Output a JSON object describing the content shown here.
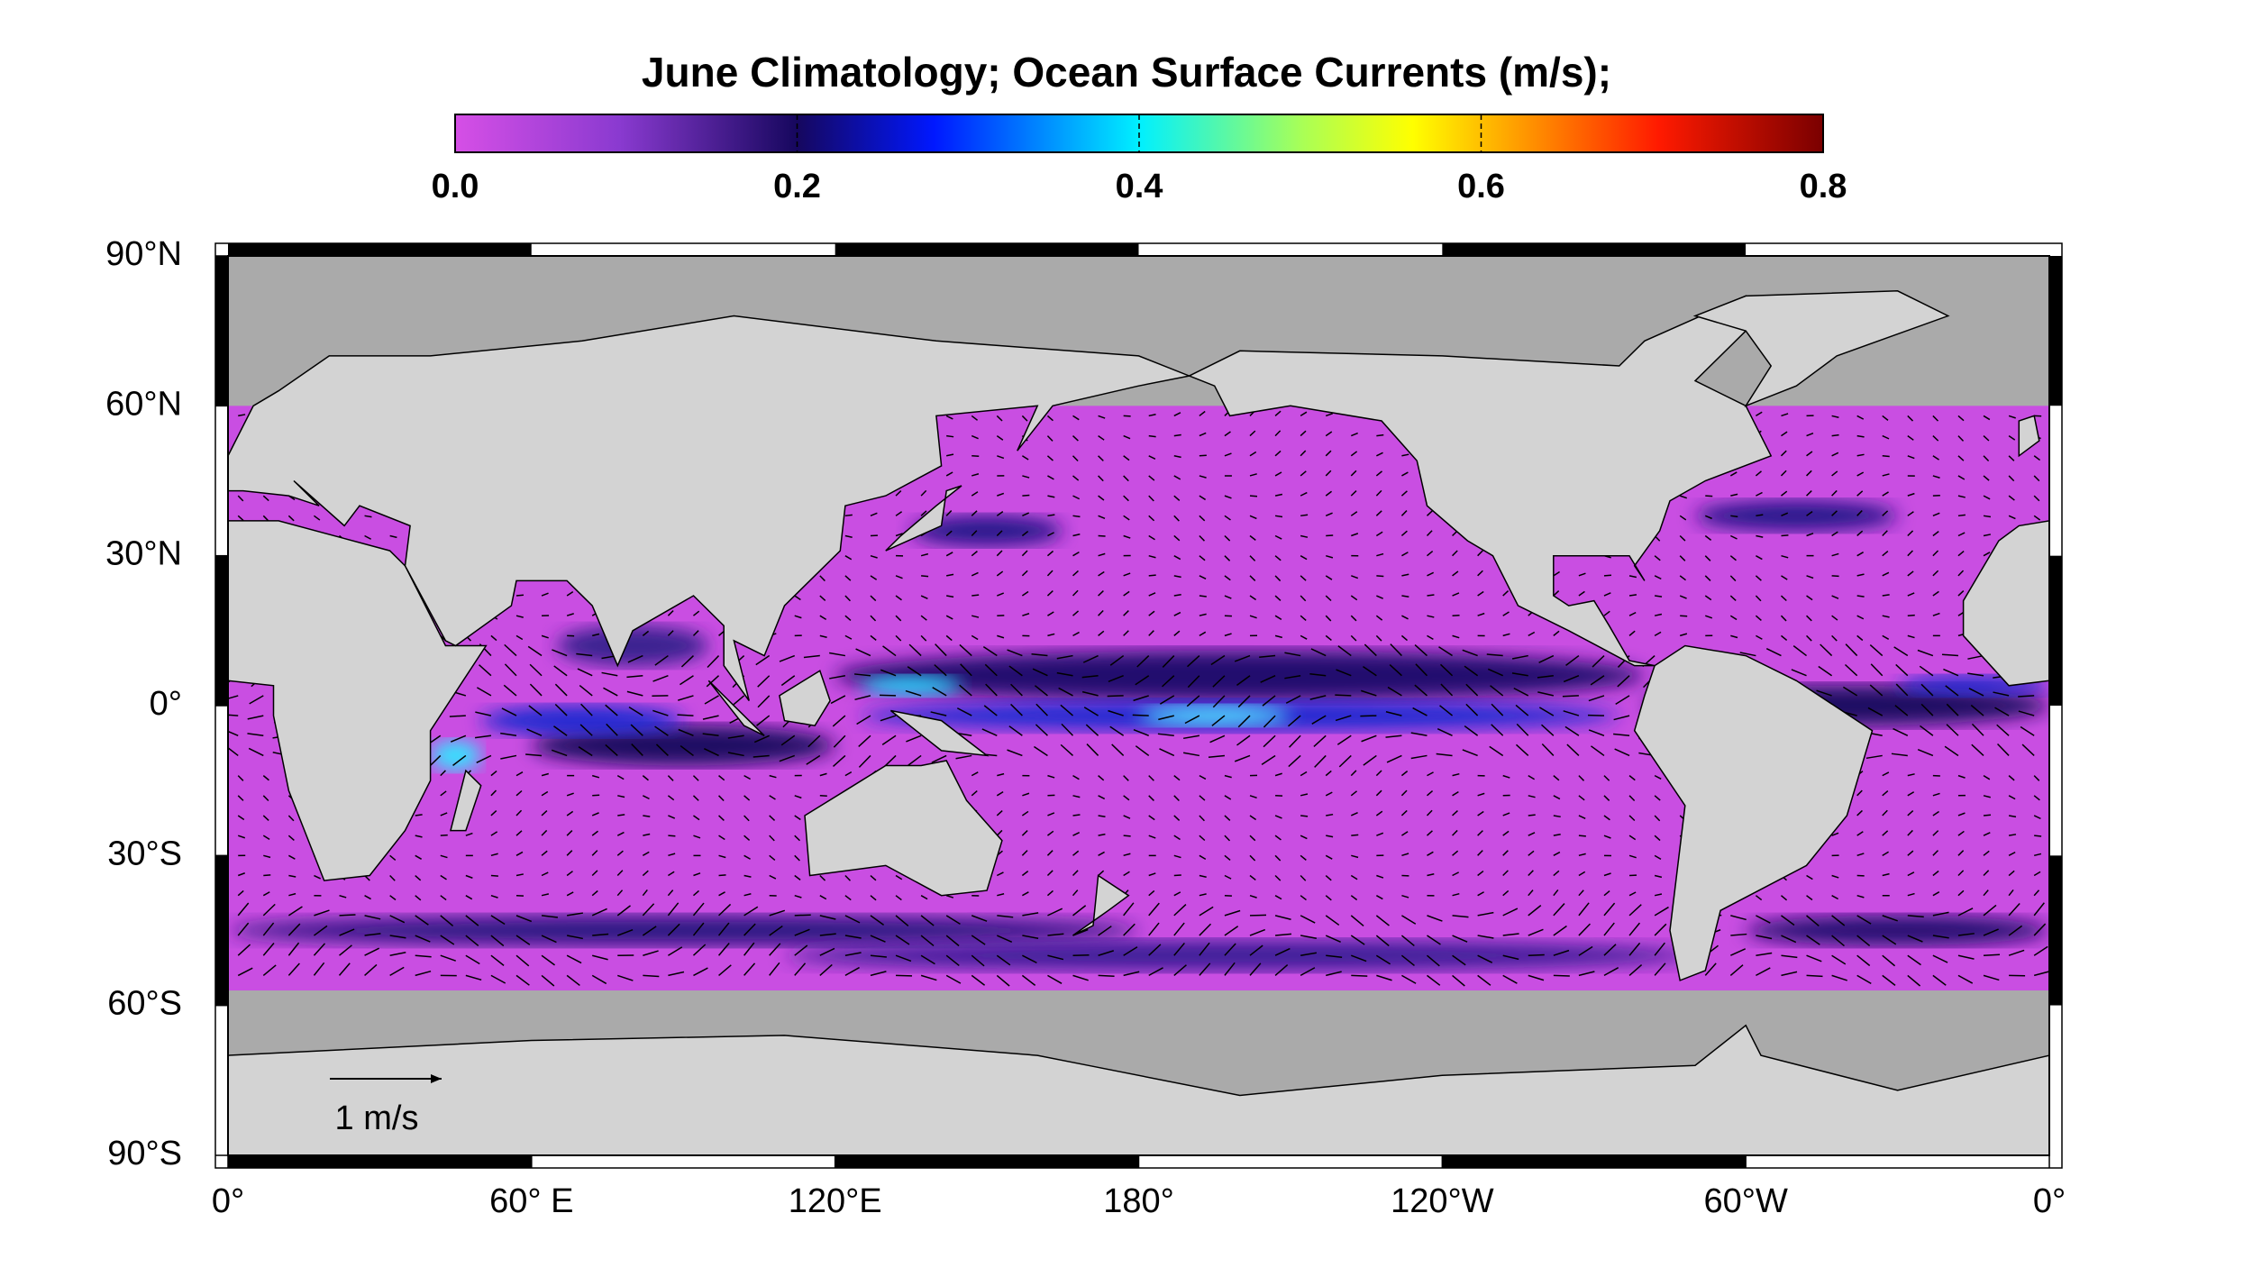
{
  "title": "June Climatology; Ocean Surface Currents (m/s);",
  "colorbar": {
    "lim": [
      0,
      0.8
    ],
    "ticks": [
      {
        "value": 0,
        "label": "0.0"
      },
      {
        "value": 0.2,
        "label": "0.2"
      },
      {
        "value": 0.4,
        "label": "0.4"
      },
      {
        "value": 0.6,
        "label": "0.6"
      },
      {
        "value": 0.8,
        "label": "0.8"
      }
    ]
  },
  "map": {
    "lon_lim": [
      0,
      360
    ],
    "lat_lim": [
      -90,
      90
    ],
    "lat_ticks": [
      {
        "value": 90,
        "label": "90°N"
      },
      {
        "value": 60,
        "label": "60°N"
      },
      {
        "value": 30,
        "label": "30°N"
      },
      {
        "value": 0,
        "label": "0°"
      },
      {
        "value": -30,
        "label": "30°S"
      },
      {
        "value": -60,
        "label": "60°S"
      },
      {
        "value": -90,
        "label": "90°S"
      }
    ],
    "lon_ticks": [
      {
        "value": 0,
        "label": "0°"
      },
      {
        "value": 60,
        "label": "60° E"
      },
      {
        "value": 120,
        "label": "120°E"
      },
      {
        "value": 180,
        "label": "180°"
      },
      {
        "value": 240,
        "label": "120°W"
      },
      {
        "value": 300,
        "label": "60°W"
      },
      {
        "value": 360,
        "label": "0°"
      }
    ],
    "scale_label": "1 m/s"
  }
}
